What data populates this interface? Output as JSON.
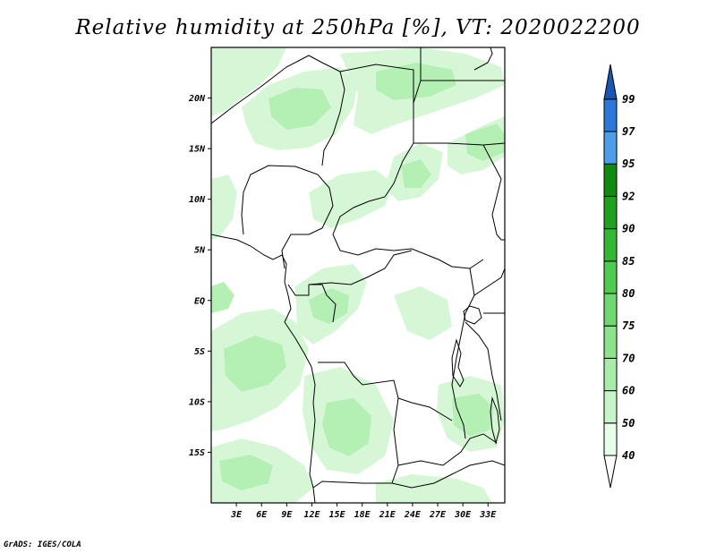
{
  "map": {
    "title": "Relative humidity at 250hPa [%], VT: 2020022200",
    "credit": "GrADS: IGES/COLA",
    "variable": "Relative humidity",
    "level": "250hPa",
    "units": "%",
    "valid_time": "2020022200",
    "lon_range": [
      0,
      35
    ],
    "lat_range": [
      -20,
      25
    ],
    "lat_ticks": [
      {
        "value": 20,
        "label": "20N"
      },
      {
        "value": 15,
        "label": "15N"
      },
      {
        "value": 10,
        "label": "10N"
      },
      {
        "value": 5,
        "label": "5N"
      },
      {
        "value": 0,
        "label": "EQ"
      },
      {
        "value": -5,
        "label": "5S"
      },
      {
        "value": -10,
        "label": "10S"
      },
      {
        "value": -15,
        "label": "15S"
      }
    ],
    "lon_ticks": [
      {
        "value": 3,
        "label": "3E"
      },
      {
        "value": 6,
        "label": "6E"
      },
      {
        "value": 9,
        "label": "9E"
      },
      {
        "value": 12,
        "label": "12E"
      },
      {
        "value": 15,
        "label": "15E"
      },
      {
        "value": 18,
        "label": "18E"
      },
      {
        "value": 21,
        "label": "21E"
      },
      {
        "value": 24,
        "label": "24E"
      },
      {
        "value": 27,
        "label": "27E"
      },
      {
        "value": 30,
        "label": "30E"
      },
      {
        "value": 33,
        "label": "33E"
      }
    ]
  },
  "colorbar": {
    "levels": [
      "40",
      "50",
      "60",
      "70",
      "75",
      "80",
      "85",
      "90",
      "92",
      "95",
      "97",
      "99"
    ],
    "colors": [
      "#ffffff",
      "#e6ffe6",
      "#c8f5c8",
      "#a8ecaa",
      "#8ce38c",
      "#6fd96f",
      "#4fcc4f",
      "#33b833",
      "#1fa01f",
      "#118a11",
      "#4d9eea",
      "#2b78d8",
      "#1a56b0"
    ]
  }
}
